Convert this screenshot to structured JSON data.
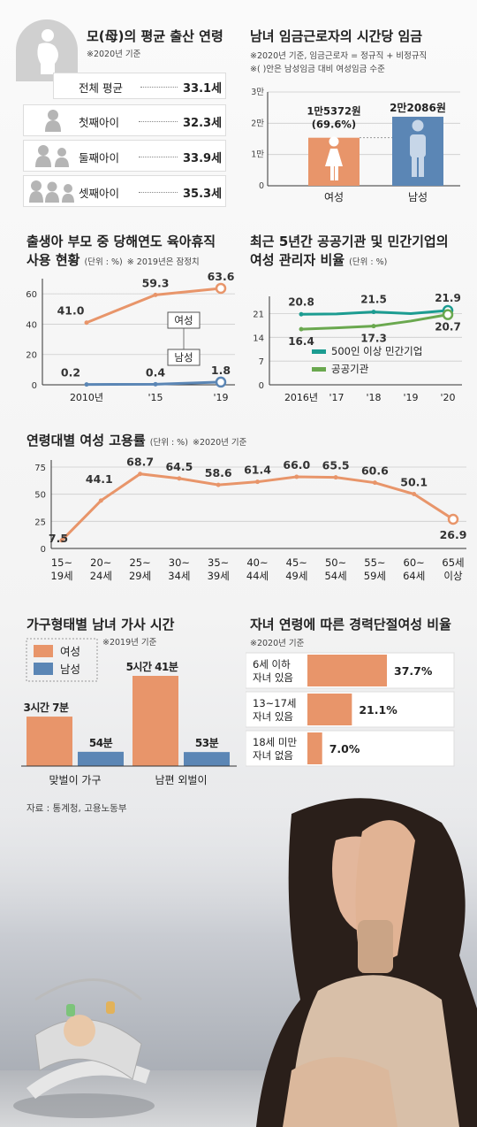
{
  "colors": {
    "female": "#e8956a",
    "male": "#5b86b5",
    "gray": "#999999",
    "dark_green": "#3a6e30",
    "teal": "#1c9c91",
    "green": "#6aa84f"
  },
  "mother_age": {
    "title": "모(母)의 평균 출산 연령",
    "note": "※2020년 기준",
    "rows": [
      {
        "label": "전체 평균",
        "value": "33.1세",
        "icon": "overall-none"
      },
      {
        "label": "첫째아이",
        "value": "32.3세",
        "icon": "one-child-icon"
      },
      {
        "label": "둘째아이",
        "value": "33.9세",
        "icon": "two-children-icon"
      },
      {
        "label": "셋째아이",
        "value": "35.3세",
        "icon": "three-children-icon"
      }
    ]
  },
  "wage": {
    "title": "남녀 임금근로자의 시간당 임금",
    "note1": "※2020년 기준, 임금근로자 = 정규직 + 비정규직",
    "note2": "※(   )안은 남성임금 대비 여성임금 수준"
  },
  "leave": {
    "title1": "출생아 부모 중 당해연도 육아휴직",
    "title2": "사용 현황",
    "unit": "(단위 : %)",
    "note": "※ 2019년은 잠정치"
  },
  "manager": {
    "title1": "최근 5년간 공공기관 및 민간기업의",
    "title2": "여성 관리자 비율",
    "unit": "(단위 : %)"
  },
  "employment": {
    "title": "연령대별 여성 고용률",
    "unit": "(단위 : %)",
    "note": "※2020년 기준"
  },
  "housework": {
    "title": "가구형태별 남녀 가사 시간",
    "note": "※2019년 기준"
  },
  "career_break": {
    "title": "자녀 연령에 따른 경력단절여성 비율",
    "note": "※2020년 기준"
  },
  "source": "자료 : 통계청, 고용노동부",
  "chart_data": [
    {
      "id": "wage",
      "type": "bar",
      "categories": [
        "여성",
        "남성"
      ],
      "values": [
        15372,
        22086
      ],
      "data_labels": [
        "1만5372원\n(69.6%)",
        "2만2086원"
      ],
      "yticks": [
        "0",
        "1만",
        "2만",
        "3만"
      ],
      "ylim": [
        0,
        30000
      ]
    },
    {
      "id": "leave",
      "type": "line",
      "x": [
        "2010년",
        "'15",
        "'19"
      ],
      "series": [
        {
          "name": "여성",
          "values": [
            41.0,
            59.3,
            63.6
          ],
          "labels": [
            "41.0",
            "59.3",
            "63.6"
          ]
        },
        {
          "name": "남성",
          "values": [
            0.2,
            0.4,
            1.8
          ],
          "labels": [
            "0.2",
            "0.4",
            "1.8"
          ]
        }
      ],
      "yticks": [
        "0",
        "20",
        "40",
        "60"
      ],
      "ylim": [
        0,
        70
      ]
    },
    {
      "id": "manager",
      "type": "line",
      "x": [
        "2016년",
        "'17",
        "'18",
        "'19",
        "'20"
      ],
      "series": [
        {
          "name": "500인 이상 민간기업",
          "values": [
            20.8,
            20.9,
            21.5,
            21.0,
            21.9
          ],
          "labels": [
            "20.8",
            "",
            "21.5",
            "",
            "21.9"
          ]
        },
        {
          "name": "공공기관",
          "values": [
            16.4,
            16.8,
            17.3,
            18.8,
            20.7
          ],
          "labels": [
            "16.4",
            "",
            "17.3",
            "",
            "20.7"
          ]
        }
      ],
      "yticks": [
        "0",
        "7",
        "14",
        "21"
      ],
      "ylim": [
        0,
        24
      ]
    },
    {
      "id": "employment",
      "type": "line",
      "x": [
        "15~\n19세",
        "20~\n24세",
        "25~\n29세",
        "30~\n34세",
        "35~\n39세",
        "40~\n44세",
        "45~\n49세",
        "50~\n54세",
        "55~\n59세",
        "60~\n64세",
        "65세\n이상"
      ],
      "series": [
        {
          "name": "여성 고용률",
          "values": [
            7.5,
            44.1,
            68.7,
            64.5,
            58.6,
            61.4,
            66.0,
            65.5,
            60.6,
            50.1,
            26.9
          ],
          "labels": [
            "7.5",
            "44.1",
            "68.7",
            "64.5",
            "58.6",
            "61.4",
            "66.0",
            "65.5",
            "60.6",
            "50.1",
            "26.9"
          ]
        }
      ],
      "yticks": [
        "0",
        "25",
        "50",
        "75"
      ],
      "ylim": [
        0,
        78
      ]
    },
    {
      "id": "housework",
      "type": "bar",
      "categories": [
        "맞벌이 가구",
        "남편 외벌이"
      ],
      "series": [
        {
          "name": "여성",
          "values": [
            187,
            341
          ],
          "labels": [
            "3시간 7분",
            "5시간 41분"
          ]
        },
        {
          "name": "남성",
          "values": [
            54,
            53
          ],
          "labels": [
            "54분",
            "53분"
          ]
        }
      ]
    },
    {
      "id": "career_break",
      "type": "bar",
      "categories": [
        "6세 이하\n자녀 있음",
        "13~17세\n자녀 있음",
        "18세 미만\n자녀 없음"
      ],
      "values": [
        37.7,
        21.1,
        7.0
      ],
      "labels": [
        "37.7%",
        "21.1%",
        "7.0%"
      ]
    }
  ]
}
